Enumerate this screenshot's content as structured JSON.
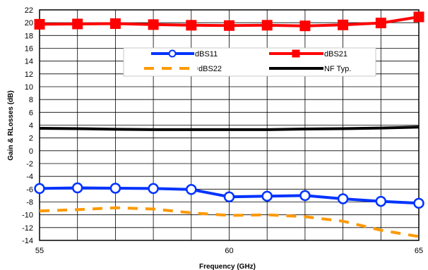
{
  "chart_data": {
    "type": "line",
    "xlabel": "Frequency (GHz)",
    "ylabel": "Gain & RLosses (dB)",
    "xlim": [
      55,
      65
    ],
    "ylim": [
      -14,
      22
    ],
    "x_ticks": [
      55,
      60,
      65
    ],
    "y_ticks": [
      -14,
      -12,
      -10,
      -8,
      -6,
      -4,
      -2,
      0,
      2,
      4,
      6,
      8,
      10,
      12,
      14,
      16,
      18,
      20,
      22
    ],
    "x_minor_step": 1,
    "grid": true,
    "legend_position": "upper-center",
    "x": [
      55,
      56,
      57,
      58,
      59,
      60,
      61,
      62,
      63,
      64,
      65
    ],
    "series": [
      {
        "name": "dBS11",
        "color": "#0033ff",
        "style": "solid",
        "marker": "circle-open",
        "values": [
          -5.9,
          -5.8,
          -5.85,
          -5.9,
          -6.05,
          -7.2,
          -7.1,
          -7.0,
          -7.5,
          -7.9,
          -8.2
        ]
      },
      {
        "name": "dBS21",
        "color": "#ff0000",
        "style": "solid",
        "marker": "square",
        "values": [
          19.75,
          19.8,
          19.85,
          19.7,
          19.6,
          19.55,
          19.6,
          19.5,
          19.65,
          19.95,
          20.9
        ]
      },
      {
        "name": "dBS22",
        "color": "#ff9900",
        "style": "dashed",
        "marker": "none",
        "values": [
          -9.4,
          -9.2,
          -8.9,
          -9.1,
          -9.7,
          -10.1,
          -10.0,
          -10.3,
          -11.0,
          -12.4,
          -13.4
        ]
      },
      {
        "name": "NF Typ.",
        "color": "#000000",
        "style": "solid",
        "marker": "none",
        "values": [
          3.5,
          3.45,
          3.35,
          3.3,
          3.3,
          3.3,
          3.3,
          3.4,
          3.45,
          3.55,
          3.7
        ]
      }
    ]
  }
}
